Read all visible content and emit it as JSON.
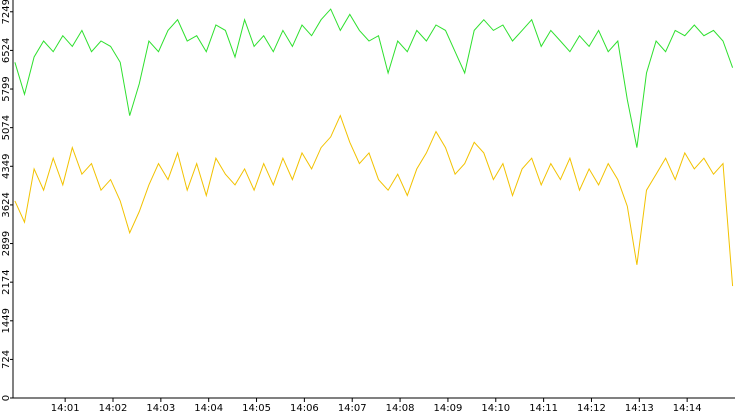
{
  "chart_data": {
    "type": "line",
    "x": [
      -0.05,
      0.15,
      0.35,
      0.55,
      0.75,
      0.95,
      1.15,
      1.35,
      1.55,
      1.75,
      1.95,
      2.15,
      2.35,
      2.55,
      2.75,
      2.95,
      3.15,
      3.35,
      3.55,
      3.75,
      3.95,
      4.15,
      4.35,
      4.55,
      4.75,
      4.95,
      5.15,
      5.35,
      5.55,
      5.75,
      5.95,
      6.15,
      6.35,
      6.55,
      6.75,
      6.95,
      7.15,
      7.35,
      7.55,
      7.75,
      7.95,
      8.15,
      8.35,
      8.55,
      8.75,
      8.95,
      9.15,
      9.35,
      9.55,
      9.75,
      9.95,
      10.15,
      10.35,
      10.55,
      10.75,
      10.95,
      11.15,
      11.35,
      11.55,
      11.75,
      11.95,
      12.15,
      12.35,
      12.55,
      12.75,
      12.95,
      13.15,
      13.35,
      13.55,
      13.75,
      13.95,
      14.15,
      14.35,
      14.55,
      14.75,
      14.95
    ],
    "series": [
      {
        "color": "#2ee02e",
        "values": [
          6300,
          5700,
          6400,
          6700,
          6500,
          6800,
          6600,
          6900,
          6500,
          6700,
          6600,
          6300,
          5300,
          5900,
          6700,
          6500,
          6900,
          7100,
          6700,
          6800,
          6500,
          7000,
          6900,
          6400,
          7100,
          6600,
          6800,
          6500,
          6900,
          6600,
          7000,
          6800,
          7100,
          7300,
          6900,
          7200,
          6900,
          6700,
          6800,
          6100,
          6700,
          6500,
          6900,
          6700,
          7000,
          6900,
          6500,
          6100,
          6900,
          7100,
          6900,
          7000,
          6700,
          6900,
          7100,
          6600,
          6900,
          6700,
          6500,
          6800,
          6600,
          6900,
          6500,
          6700,
          5600,
          4700,
          6100,
          6700,
          6500,
          6900,
          6800,
          7000,
          6800,
          6900,
          6700,
          6200
        ]
      },
      {
        "color": "#f2c200",
        "values": [
          3700,
          3300,
          4300,
          3900,
          4500,
          4000,
          4700,
          4200,
          4400,
          3900,
          4100,
          3700,
          3100,
          3500,
          4000,
          4400,
          4100,
          4600,
          3900,
          4400,
          3800,
          4500,
          4200,
          4000,
          4300,
          3900,
          4400,
          4000,
          4500,
          4100,
          4600,
          4300,
          4700,
          4900,
          5300,
          4800,
          4400,
          4600,
          4100,
          3900,
          4200,
          3800,
          4300,
          4600,
          5000,
          4700,
          4200,
          4400,
          4800,
          4600,
          4100,
          4400,
          3800,
          4300,
          4500,
          4000,
          4400,
          4100,
          4500,
          3900,
          4300,
          4000,
          4400,
          4100,
          3600,
          2500,
          3900,
          4200,
          4500,
          4100,
          4600,
          4300,
          4500,
          4200,
          4400,
          2100
        ]
      }
    ],
    "xlim": [
      -0.09,
      15
    ],
    "xticks": [
      {
        "value": 1,
        "label": "14:01"
      },
      {
        "value": 2,
        "label": "14:02"
      },
      {
        "value": 3,
        "label": "14:03"
      },
      {
        "value": 4,
        "label": "14:04"
      },
      {
        "value": 5,
        "label": "14:05"
      },
      {
        "value": 6,
        "label": "14:06"
      },
      {
        "value": 7,
        "label": "14:07"
      },
      {
        "value": 8,
        "label": "14:08"
      },
      {
        "value": 9,
        "label": "14:09"
      },
      {
        "value": 10,
        "label": "14:10"
      },
      {
        "value": 11,
        "label": "14:11"
      },
      {
        "value": 12,
        "label": "14:12"
      },
      {
        "value": 13,
        "label": "14:13"
      },
      {
        "value": 14,
        "label": "14:14"
      }
    ],
    "ylim": [
      0,
      7470
    ],
    "yticks": [
      0,
      724,
      1449,
      2174,
      2899,
      3624,
      4349,
      5074,
      5799,
      6524,
      7249
    ]
  }
}
